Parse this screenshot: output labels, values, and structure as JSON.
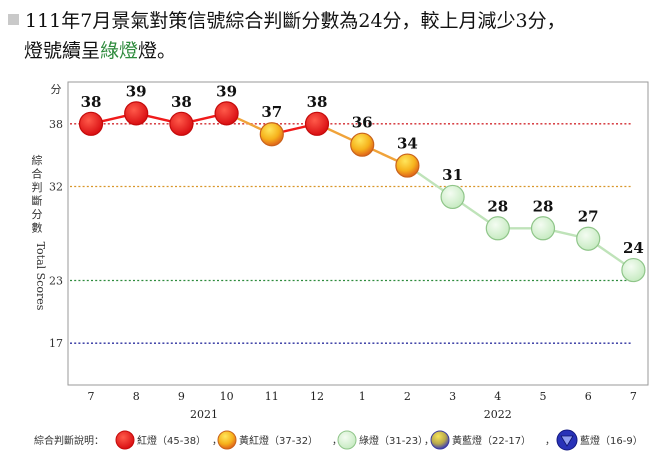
{
  "headline": {
    "line1": "111年7月景氣對策信號綜合判斷分數為24分，較上月減少3分，",
    "line2_pre": "燈號續呈",
    "line2_green": "綠燈",
    "line2_post": "燈。"
  },
  "chart_data": {
    "type": "line",
    "y_unit": "分",
    "ylabel_zh": "綜合判斷分數",
    "ylabel_en": "Total Scores",
    "ylim": [
      13,
      42
    ],
    "yticks": [
      17,
      23,
      32,
      38
    ],
    "categories": [
      "7",
      "8",
      "9",
      "10",
      "11",
      "12",
      "1",
      "2",
      "3",
      "4",
      "5",
      "6",
      "7"
    ],
    "values": [
      38,
      39,
      38,
      39,
      37,
      38,
      36,
      34,
      31,
      28,
      28,
      27,
      24
    ],
    "signals": [
      "red",
      "red",
      "red",
      "red",
      "yellow-red",
      "red",
      "yellow-red",
      "yellow-red",
      "green",
      "green",
      "green",
      "green",
      "green"
    ],
    "years": [
      {
        "label": "2021",
        "from": 0,
        "to": 5
      },
      {
        "label": "2022",
        "from": 6,
        "to": 12
      }
    ],
    "threshold_lines": [
      {
        "value": 38,
        "color": "#d2282e"
      },
      {
        "value": 32,
        "color": "#d9962a"
      },
      {
        "value": 23,
        "color": "#2e8b3d"
      },
      {
        "value": 17,
        "color": "#2b2f9e"
      }
    ],
    "legend": {
      "title": "綜合判斷說明：",
      "items": [
        {
          "key": "red",
          "label": "紅燈（45-38）"
        },
        {
          "key": "yellow-red",
          "label": "黃紅燈（37-32）"
        },
        {
          "key": "green",
          "label": "綠燈（31-23）"
        },
        {
          "key": "yellow-blue",
          "label": "黃藍燈（22-17）"
        },
        {
          "key": "blue",
          "label": "藍燈（16-9）"
        }
      ],
      "separator": "，"
    },
    "signal_colors": {
      "red": "#e31b1b",
      "yellow-red": "#f2a21a",
      "green": "#d9f2d6",
      "yellow-blue": "#6b6fd0",
      "blue": "#2832b8"
    }
  }
}
